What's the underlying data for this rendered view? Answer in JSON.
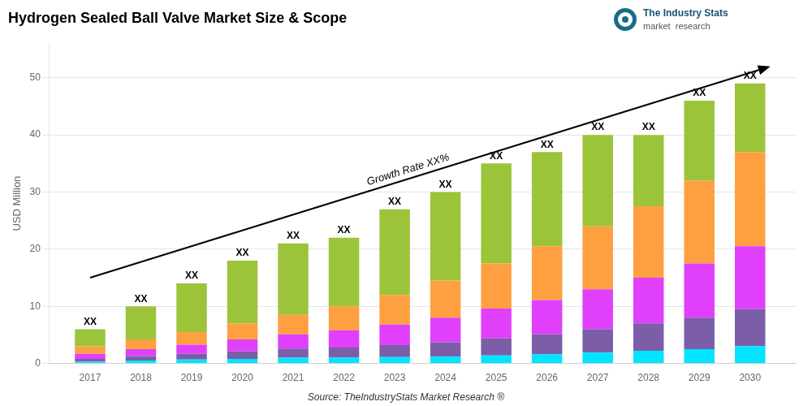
{
  "chart_data": {
    "type": "bar",
    "title": "Hydrogen Sealed Ball Valve Market Size & Scope",
    "ylabel": "USD Million",
    "x": [
      2017,
      2018,
      2019,
      2020,
      2021,
      2022,
      2023,
      2024,
      2025,
      2026,
      2027,
      2028,
      2029,
      2030
    ],
    "series": [
      {
        "color": "#00e5ff",
        "values": [
          0.3,
          0.5,
          0.7,
          0.8,
          1.0,
          1.0,
          1.1,
          1.2,
          1.4,
          1.6,
          1.9,
          2.2,
          2.5,
          3.0
        ]
      },
      {
        "color": "#7b5ea7",
        "values": [
          0.5,
          0.8,
          1.0,
          1.3,
          1.6,
          1.8,
          2.1,
          2.5,
          3.0,
          3.5,
          4.1,
          4.8,
          5.5,
          6.5
        ]
      },
      {
        "color": "#e040fb",
        "values": [
          0.9,
          1.2,
          1.6,
          2.1,
          2.5,
          3.0,
          3.6,
          4.3,
          5.2,
          6.0,
          7.0,
          8.0,
          9.5,
          11.0
        ]
      },
      {
        "color": "#ffa040",
        "values": [
          1.3,
          1.7,
          2.2,
          2.8,
          3.4,
          4.2,
          5.2,
          6.5,
          7.9,
          9.4,
          11.0,
          12.5,
          14.5,
          16.5
        ]
      },
      {
        "color": "#9bc43b",
        "values": [
          3.0,
          5.8,
          8.5,
          11.0,
          12.5,
          12.0,
          15.0,
          15.5,
          17.5,
          16.5,
          16.0,
          12.5,
          14.0,
          12.0
        ]
      }
    ],
    "stacked": true,
    "xlim": [
      2016.2,
      2030.9
    ],
    "xticks": [
      2017,
      2018,
      2019,
      2020,
      2021,
      2022,
      2023,
      2024,
      2025,
      2026,
      2027,
      2028,
      2029,
      2030
    ],
    "ylim": [
      0,
      56
    ],
    "yticks": [
      0,
      10,
      20,
      30,
      40,
      50
    ],
    "grid": "y",
    "annotations": [
      {
        "text": "XX",
        "x": 2017
      },
      {
        "text": "XX",
        "x": 2018
      },
      {
        "text": "XX",
        "x": 2019
      },
      {
        "text": "XX",
        "x": 2020
      },
      {
        "text": "XX",
        "x": 2021
      },
      {
        "text": "XX",
        "x": 2022
      },
      {
        "text": "XX",
        "x": 2023
      },
      {
        "text": "XX",
        "x": 2024
      },
      {
        "text": "XX",
        "x": 2025
      },
      {
        "text": "XX",
        "x": 2026
      },
      {
        "text": "XX",
        "x": 2027
      },
      {
        "text": "XX",
        "x": 2028
      },
      {
        "text": "XX",
        "x": 2029
      },
      {
        "text": "XX",
        "x": 2030
      },
      {
        "x": 2017.0,
        "y": 15.0,
        "x_end": 2030.4,
        "y_end": 52.0
      },
      {
        "text": "Growth Rate XX%",
        "x": 2022.5,
        "y": 30.5
      }
    ],
    "source": "Source: TheIndustryStats Market Research ®",
    "logo": [
      "The Industry Stats",
      "market  research"
    ]
  }
}
